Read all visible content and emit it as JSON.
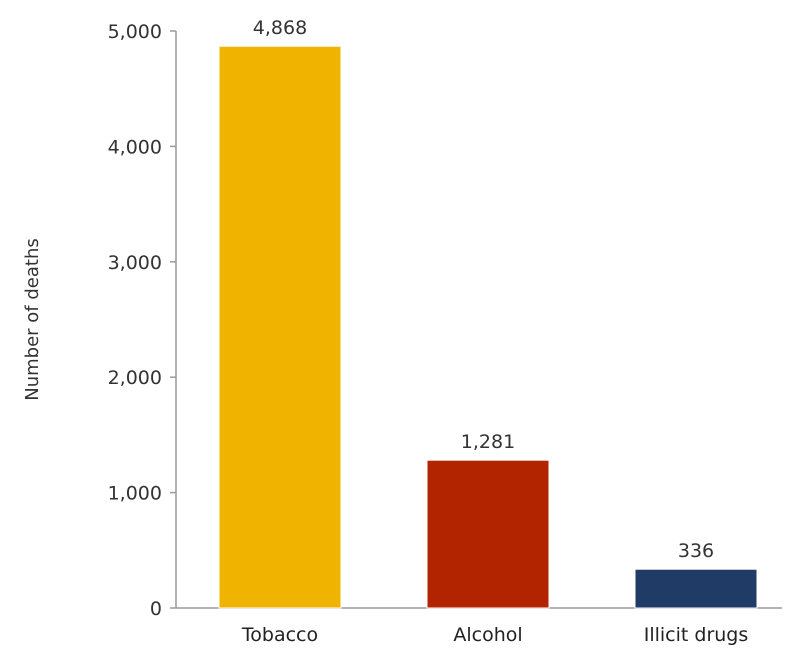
{
  "chart_data": {
    "type": "bar",
    "title": "",
    "xlabel": "",
    "ylabel": "Number of deaths",
    "categories": [
      "Tobacco",
      "Alcohol",
      "Illicit drugs"
    ],
    "values": [
      4868,
      1281,
      336
    ],
    "value_labels": [
      "4,868",
      "1,281",
      "336"
    ],
    "colors": [
      "#f0b400",
      "#b22400",
      "#1f3b66"
    ],
    "ylim": [
      0,
      5000
    ],
    "yticks": [
      0,
      1000,
      2000,
      3000,
      4000,
      5000
    ],
    "ytick_labels": [
      "0",
      "1,000",
      "2,000",
      "3,000",
      "4,000",
      "5,000"
    ],
    "grid": false,
    "legend": "none"
  }
}
